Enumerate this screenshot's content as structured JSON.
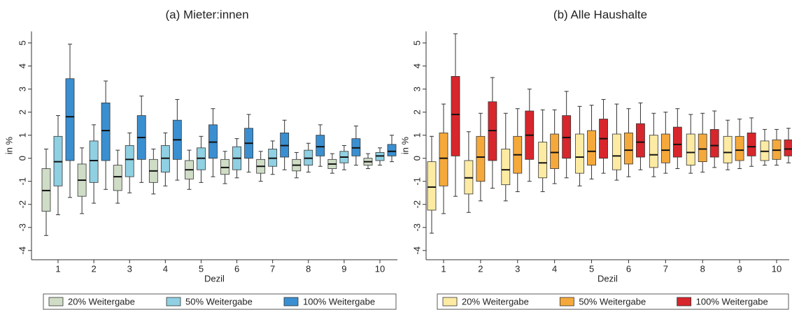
{
  "chart_data": [
    {
      "type": "box",
      "title": "(a) Mieter:innen",
      "xlabel": "Dezil",
      "ylabel": "in %",
      "categories": [
        "1",
        "2",
        "3",
        "4",
        "5",
        "6",
        "7",
        "8",
        "9",
        "10"
      ],
      "ylim": [
        -4.4,
        5.5
      ],
      "yticks": [
        -4,
        -3,
        -2,
        -1,
        0,
        1,
        2,
        3,
        4,
        5
      ],
      "series": [
        {
          "name": "20% Weitergabe",
          "color": "#cfdcc6",
          "low": [
            -3.35,
            -2.4,
            -1.95,
            -1.55,
            -1.35,
            -1.1,
            -1.0,
            -0.85,
            -0.65,
            -0.45
          ],
          "q1": [
            -2.3,
            -1.65,
            -1.4,
            -1.05,
            -0.9,
            -0.7,
            -0.65,
            -0.55,
            -0.45,
            -0.3
          ],
          "median": [
            -1.4,
            -0.95,
            -0.8,
            -0.55,
            -0.5,
            -0.4,
            -0.35,
            -0.3,
            -0.25,
            -0.15
          ],
          "q3": [
            -0.45,
            -0.25,
            -0.3,
            -0.05,
            -0.1,
            -0.05,
            -0.05,
            -0.05,
            -0.05,
            0.0
          ],
          "high": [
            0.4,
            0.45,
            0.35,
            0.4,
            0.35,
            0.3,
            0.3,
            0.25,
            0.2,
            0.2
          ]
        },
        {
          "name": "50% Weitergabe",
          "color": "#8fd0e2",
          "low": [
            -2.45,
            -1.95,
            -1.5,
            -1.2,
            -1.05,
            -0.85,
            -0.7,
            -0.6,
            -0.5,
            -0.3
          ],
          "q1": [
            -1.2,
            -1.05,
            -0.8,
            -0.6,
            -0.5,
            -0.5,
            -0.35,
            -0.3,
            -0.2,
            -0.1
          ],
          "median": [
            -0.15,
            -0.1,
            -0.05,
            0.0,
            0.0,
            0.0,
            0.0,
            0.0,
            0.05,
            0.1
          ],
          "q3": [
            0.95,
            0.75,
            0.55,
            0.55,
            0.45,
            0.5,
            0.4,
            0.35,
            0.3,
            0.25
          ],
          "high": [
            1.85,
            1.45,
            1.1,
            1.1,
            0.95,
            0.85,
            0.75,
            0.65,
            0.55,
            0.45
          ]
        },
        {
          "name": "100% Weitergabe",
          "color": "#3a8fd1",
          "low": [
            -1.7,
            -1.35,
            -1.05,
            -0.95,
            -0.8,
            -0.6,
            -0.5,
            -0.35,
            -0.3,
            -0.15
          ],
          "q1": [
            -0.1,
            -0.1,
            -0.05,
            -0.05,
            0.0,
            0.0,
            0.05,
            0.1,
            0.1,
            0.1
          ],
          "median": [
            1.8,
            1.2,
            0.9,
            0.8,
            0.7,
            0.65,
            0.55,
            0.5,
            0.45,
            0.3
          ],
          "q3": [
            3.45,
            2.4,
            1.85,
            1.65,
            1.45,
            1.3,
            1.1,
            1.0,
            0.85,
            0.6
          ],
          "high": [
            4.95,
            3.35,
            2.7,
            2.55,
            2.15,
            1.9,
            1.65,
            1.45,
            1.4,
            1.0
          ]
        }
      ]
    },
    {
      "type": "box",
      "title": "(b) Alle Haushalte",
      "xlabel": "Dezil",
      "ylabel": "in %",
      "categories": [
        "1",
        "2",
        "3",
        "4",
        "5",
        "6",
        "7",
        "8",
        "9",
        "10"
      ],
      "ylim": [
        -4.4,
        5.5
      ],
      "yticks": [
        -4,
        -3,
        -2,
        -1,
        0,
        1,
        2,
        3,
        4,
        5
      ],
      "series": [
        {
          "name": "20% Weitergabe",
          "color": "#fdeba3",
          "low": [
            -3.25,
            -2.35,
            -1.85,
            -1.45,
            -1.2,
            -0.95,
            -0.8,
            -0.65,
            -0.5,
            -0.3
          ],
          "q1": [
            -2.25,
            -1.55,
            -1.15,
            -0.85,
            -0.65,
            -0.5,
            -0.4,
            -0.3,
            -0.2,
            -0.1
          ],
          "median": [
            -1.25,
            -0.85,
            -0.5,
            -0.2,
            0.05,
            0.1,
            0.15,
            0.25,
            0.25,
            0.3
          ],
          "q3": [
            -0.15,
            -0.1,
            0.4,
            0.7,
            1.05,
            1.05,
            1.0,
            1.05,
            0.95,
            0.75
          ],
          "high": [
            0.95,
            1.15,
            1.95,
            2.1,
            2.25,
            2.35,
            1.95,
            1.9,
            1.65,
            1.25
          ]
        },
        {
          "name": "50% Weitergabe",
          "color": "#f5a93b",
          "low": [
            -2.4,
            -1.85,
            -1.45,
            -1.1,
            -0.9,
            -0.8,
            -0.65,
            -0.6,
            -0.45,
            -0.3
          ],
          "q1": [
            -1.2,
            -1.0,
            -0.65,
            -0.45,
            -0.3,
            -0.25,
            -0.2,
            -0.15,
            -0.1,
            -0.05
          ],
          "median": [
            0.0,
            0.05,
            0.15,
            0.25,
            0.3,
            0.35,
            0.35,
            0.4,
            0.35,
            0.35
          ],
          "q3": [
            1.1,
            0.95,
            0.95,
            1.05,
            1.2,
            1.1,
            1.05,
            1.05,
            0.95,
            0.8
          ],
          "high": [
            2.35,
            1.95,
            2.15,
            2.1,
            2.3,
            2.15,
            2.0,
            1.95,
            1.7,
            1.25
          ]
        },
        {
          "name": "100% Weitergabe",
          "color": "#d7262c",
          "low": [
            -1.65,
            -1.3,
            -1.0,
            -0.85,
            -0.65,
            -0.5,
            -0.45,
            -0.4,
            -0.35,
            -0.2
          ],
          "q1": [
            0.1,
            -0.1,
            -0.05,
            0.0,
            0.0,
            0.05,
            0.05,
            0.05,
            0.1,
            0.1
          ],
          "median": [
            1.9,
            1.2,
            1.0,
            0.9,
            0.85,
            0.7,
            0.6,
            0.55,
            0.5,
            0.4
          ],
          "q3": [
            3.55,
            2.45,
            2.05,
            1.85,
            1.7,
            1.5,
            1.35,
            1.25,
            1.1,
            0.8
          ],
          "high": [
            5.4,
            3.5,
            3.0,
            2.9,
            2.55,
            2.4,
            2.15,
            2.05,
            1.75,
            1.3
          ]
        }
      ]
    }
  ]
}
